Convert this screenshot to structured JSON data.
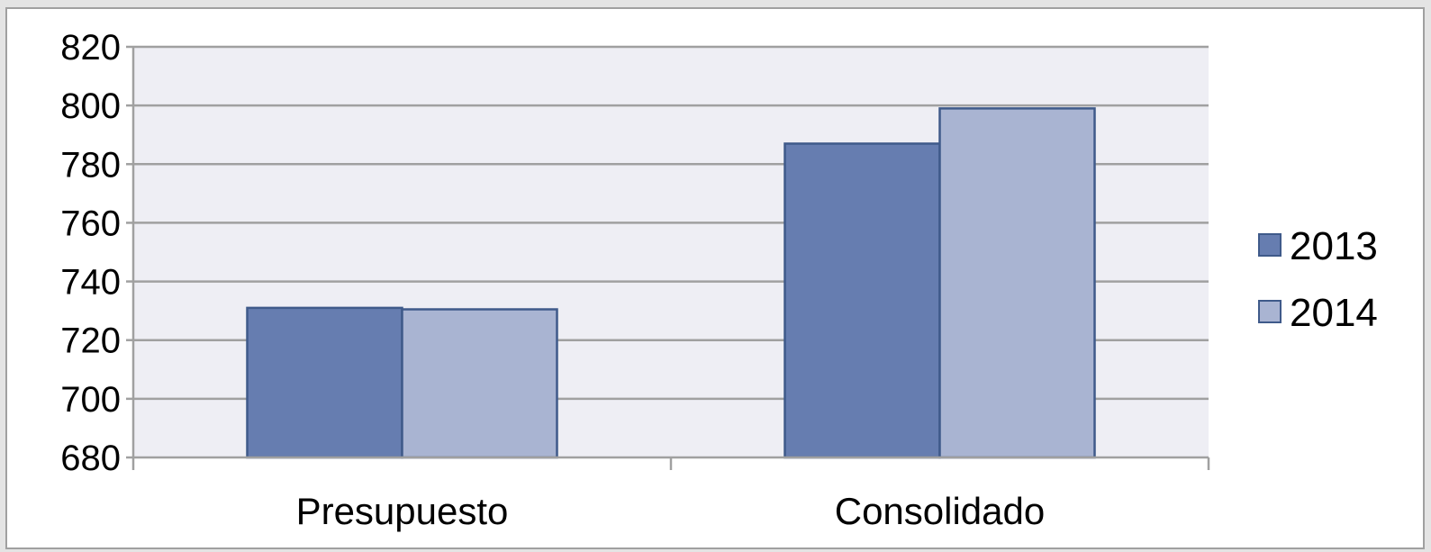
{
  "chart_data": {
    "type": "bar",
    "categories": [
      "Presupuesto",
      "Consolidado"
    ],
    "series": [
      {
        "name": "2013",
        "values": [
          731,
          787
        ],
        "color": "#667db0"
      },
      {
        "name": "2014",
        "values": [
          730.5,
          799
        ],
        "color": "#a9b4d2"
      }
    ],
    "ylim": [
      680,
      820
    ],
    "yticks": [
      680,
      700,
      720,
      740,
      760,
      780,
      800,
      820
    ],
    "grid": true,
    "legend_position": "right",
    "plot_background": "#eeeef4",
    "bar_border_color": "#3f5a8a",
    "grid_color": "#a0a0a0"
  }
}
